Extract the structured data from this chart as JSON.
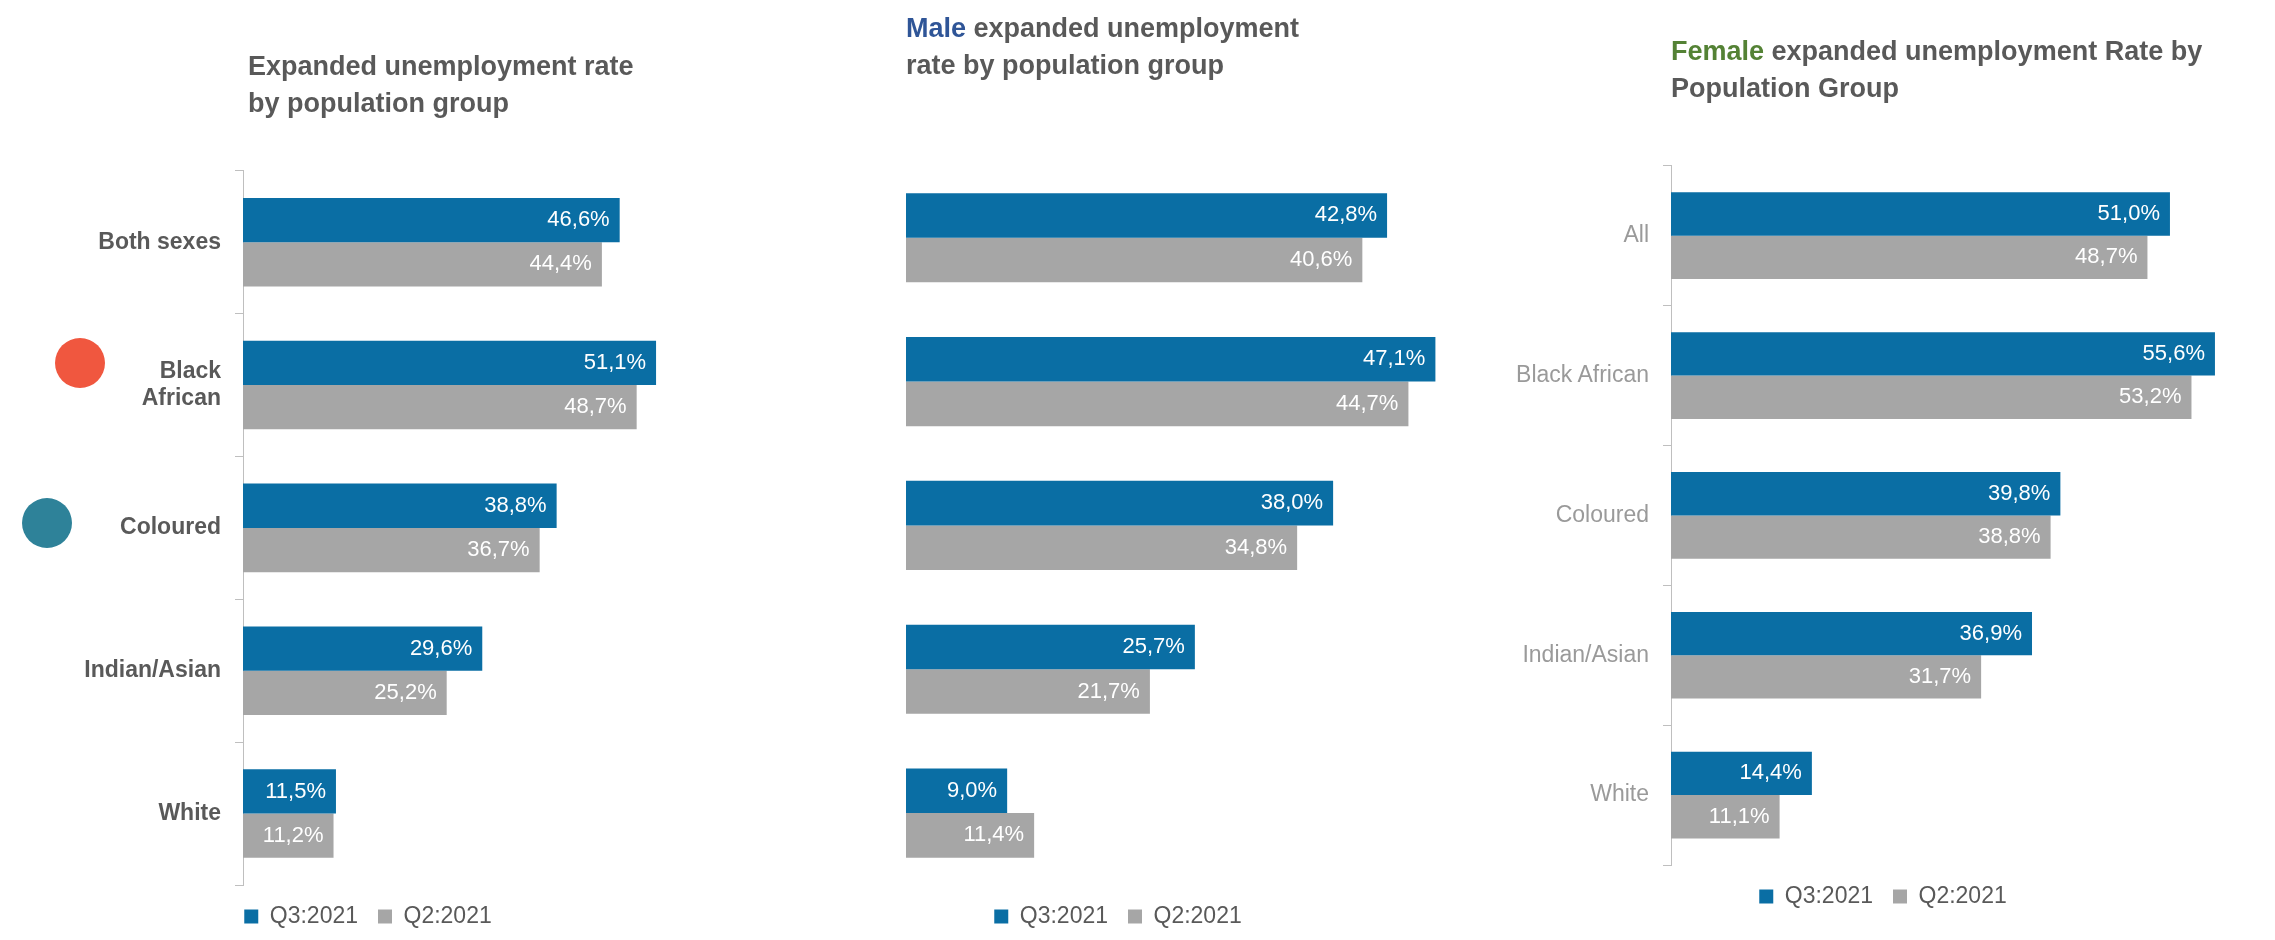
{
  "chart_data": [
    {
      "type": "bar",
      "orientation": "horizontal",
      "title": "Expanded unemployment rate by population group",
      "categories": [
        "Both sexes",
        "Black African",
        "Coloured",
        "Indian/Asian",
        "White"
      ],
      "series": [
        {
          "name": "Q3:2021",
          "color": "#0a6ea4",
          "values": [
            46.6,
            51.1,
            38.8,
            29.6,
            11.5
          ],
          "value_labels": [
            "46,6%",
            "51,1%",
            "38,8%",
            "29,6%",
            "11,5%"
          ]
        },
        {
          "name": "Q2:2021",
          "color": "#a6a6a6",
          "values": [
            44.4,
            48.7,
            36.7,
            25.2,
            11.2
          ],
          "value_labels": [
            "44,4%",
            "48,7%",
            "36,7%",
            "25,2%",
            "11,2%"
          ]
        }
      ],
      "legend": "bottom"
    },
    {
      "type": "bar",
      "orientation": "horizontal",
      "title": "Male expanded unemployment rate by population group",
      "categories": [
        null,
        null,
        null,
        null,
        null
      ],
      "series": [
        {
          "name": "Q3:2021",
          "color": "#0a6ea4",
          "values": [
            42.8,
            47.1,
            38.0,
            25.7,
            9.0
          ],
          "value_labels": [
            "42,8%",
            "47,1%",
            "38,0%",
            "25,7%",
            "9,0%"
          ]
        },
        {
          "name": "Q2:2021",
          "color": "#a6a6a6",
          "values": [
            40.6,
            44.7,
            34.8,
            21.7,
            11.4
          ],
          "value_labels": [
            "40,6%",
            "44,7%",
            "34,8%",
            "21,7%",
            "11,4%"
          ]
        }
      ],
      "legend": "bottom"
    },
    {
      "type": "bar",
      "orientation": "horizontal",
      "title": "Female expanded unemployment Rate by Population Group",
      "categories": [
        "All",
        "Black African",
        "Coloured",
        "Indian/Asian",
        "White"
      ],
      "series": [
        {
          "name": "Q3:2021",
          "color": "#0a6ea4",
          "values": [
            51.0,
            55.6,
            39.8,
            36.9,
            14.4
          ],
          "value_labels": [
            "51,0%",
            "55,6%",
            "39,8%",
            "36,9%",
            "14,4%"
          ]
        },
        {
          "name": "Q2:2021",
          "color": "#a6a6a6",
          "values": [
            48.7,
            53.2,
            38.8,
            31.7,
            11.1
          ],
          "value_labels": [
            "48,7%",
            "53,2%",
            "38,8%",
            "31,7%",
            "11,1%"
          ]
        }
      ],
      "legend": "bottom"
    }
  ]
}
